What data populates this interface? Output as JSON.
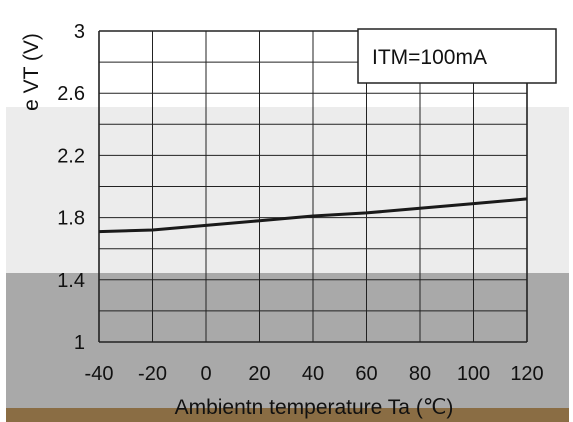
{
  "chart_data": {
    "type": "line",
    "xlabel": "Ambientn temperature Ta (℃)",
    "ylabel": "e VT (V)",
    "annotation": "ITM=100mA",
    "x_ticks": [
      "-40",
      "-20",
      "0",
      "20",
      "40",
      "60",
      "80",
      "100",
      "120"
    ],
    "y_ticks": [
      "1",
      "1.4",
      "1.8",
      "2.2",
      "2.6",
      "3"
    ],
    "xlim": [
      -40,
      120
    ],
    "ylim": [
      1,
      3
    ],
    "grid": true,
    "series": [
      {
        "x": [
          -40,
          -20,
          0,
          20,
          40,
          60,
          80,
          100,
          120
        ],
        "y": [
          1.71,
          1.72,
          1.75,
          1.78,
          1.81,
          1.83,
          1.86,
          1.89,
          1.92
        ]
      }
    ],
    "colors": {
      "line": "#1a1a1a",
      "grid": "#222222"
    }
  }
}
